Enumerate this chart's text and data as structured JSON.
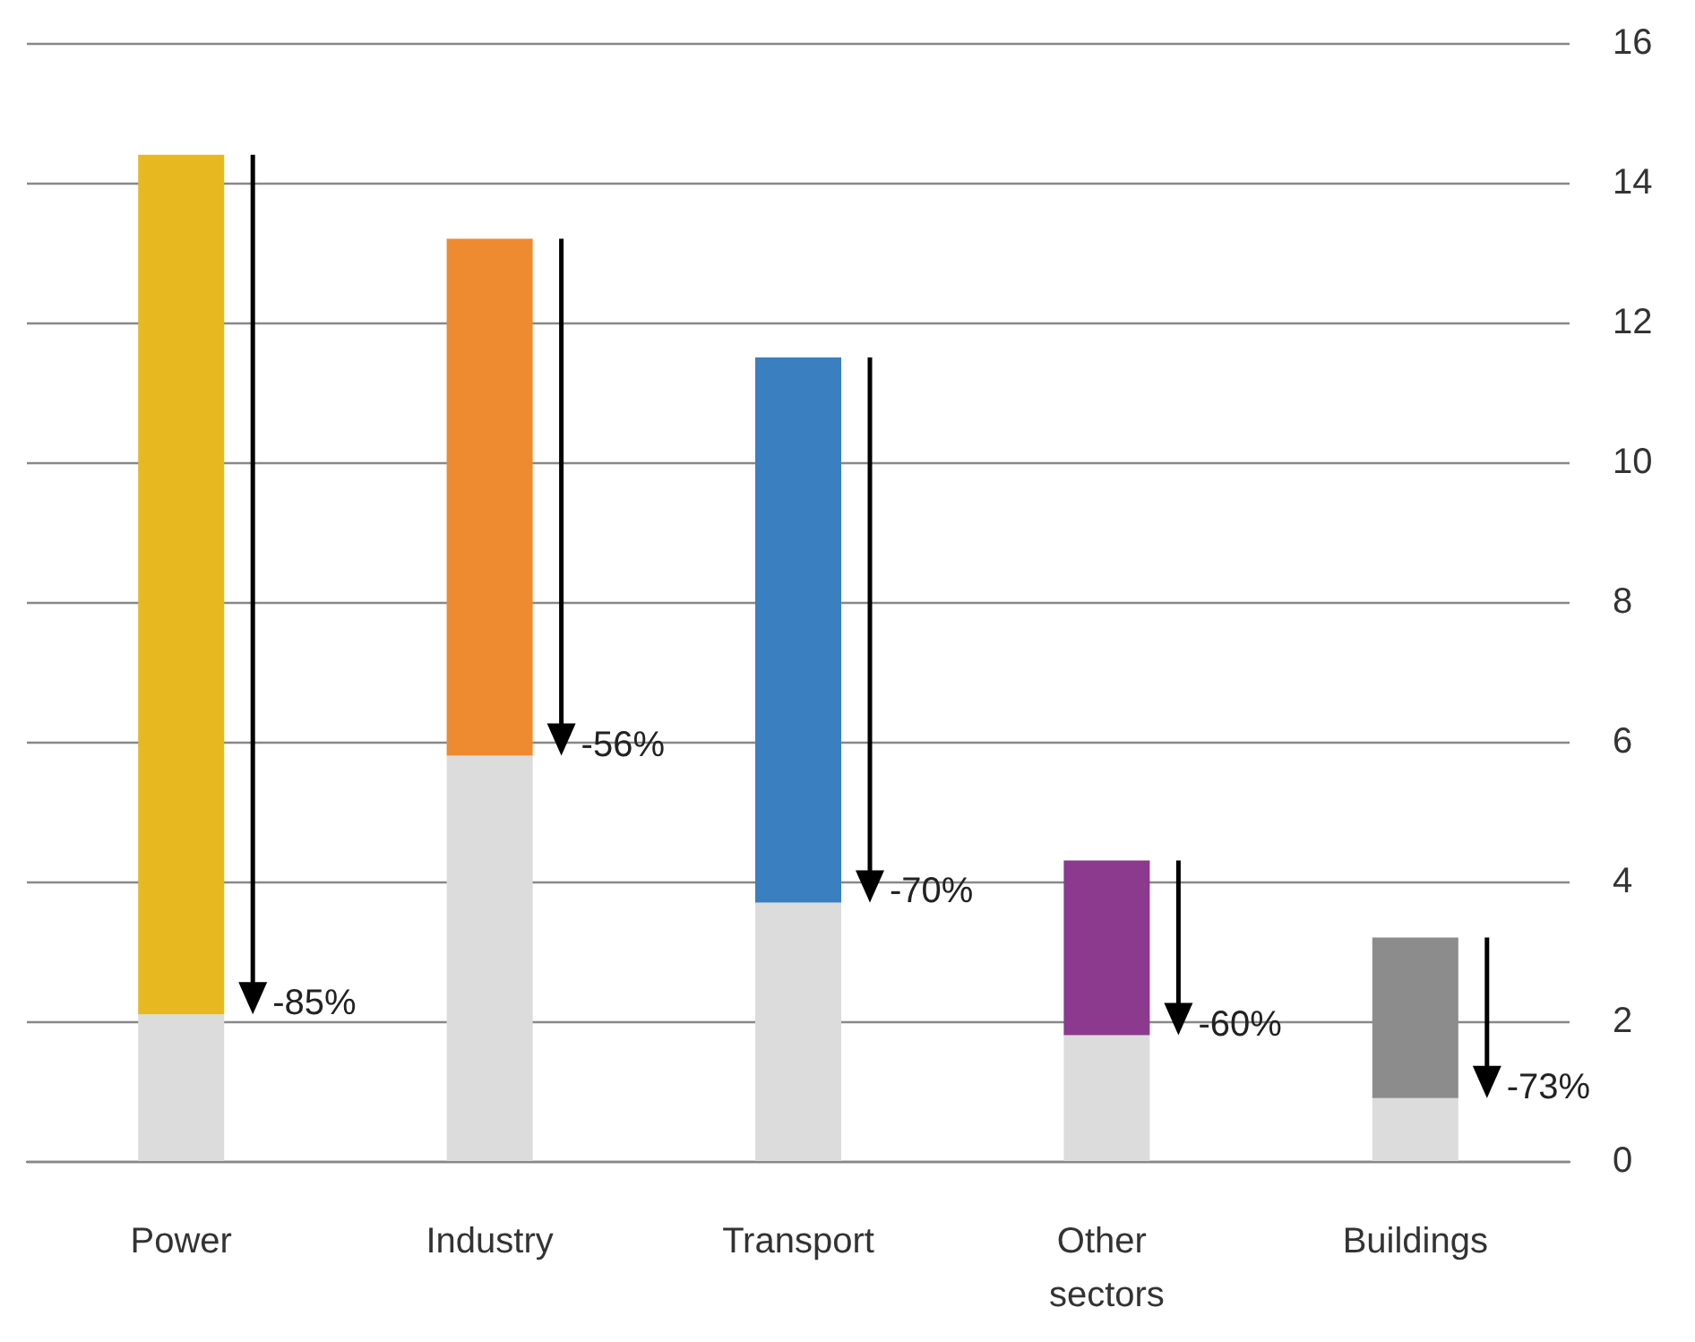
{
  "chart_data": {
    "type": "bar",
    "stacked": true,
    "categories": [
      "Power",
      "Industry",
      "Transport",
      "Other sectors",
      "Buildings"
    ],
    "series": [
      {
        "color": "#dcdcdc",
        "values": [
          2.1,
          5.8,
          3.7,
          1.8,
          0.9
        ]
      },
      {
        "colors": [
          "#e8b820",
          "#ee8a30",
          "#3a7fc0",
          "#8b3a8e",
          "#8c8c8c"
        ],
        "values": [
          12.3,
          7.4,
          7.8,
          2.5,
          2.3
        ]
      }
    ],
    "ylim": [
      0,
      16
    ],
    "yticks": [
      0,
      2,
      4,
      6,
      8,
      10,
      12,
      14,
      16
    ],
    "grid": "y",
    "annotations": [
      {
        "text": "-85%",
        "x": "Power",
        "y": 2.1
      },
      {
        "text": "-56%",
        "x": "Industry",
        "y": 5.8
      },
      {
        "text": "-70%",
        "x": "Transport",
        "y": 3.7
      },
      {
        "text": "-60%",
        "x": "Other sectors",
        "y": 1.8
      },
      {
        "text": "-73%",
        "x": "Buildings",
        "y": 0.9
      }
    ]
  }
}
